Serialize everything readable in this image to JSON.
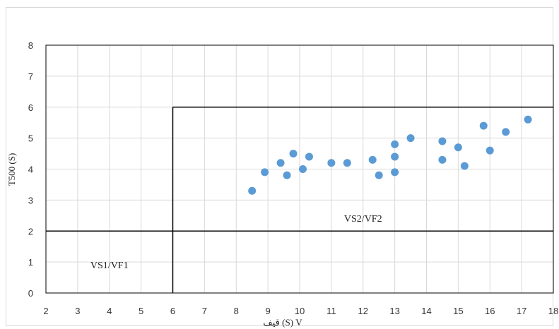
{
  "chart_data": {
    "type": "scatter",
    "xlabel": "قيف (S) V",
    "ylabel": "T500 (S)",
    "xlim": [
      2,
      18
    ],
    "ylim": [
      0,
      8
    ],
    "x_ticks": [
      2,
      3,
      4,
      5,
      6,
      7,
      8,
      9,
      10,
      11,
      12,
      13,
      14,
      15,
      16,
      17,
      18
    ],
    "y_ticks": [
      0,
      1,
      2,
      3,
      4,
      5,
      6,
      7,
      8
    ],
    "grid": true,
    "marker_color": "#5b9bd5",
    "points": [
      {
        "x": 8.5,
        "y": 3.3
      },
      {
        "x": 8.9,
        "y": 3.9
      },
      {
        "x": 9.4,
        "y": 4.2
      },
      {
        "x": 9.6,
        "y": 3.8
      },
      {
        "x": 9.8,
        "y": 4.5
      },
      {
        "x": 10.1,
        "y": 4.0
      },
      {
        "x": 10.3,
        "y": 4.4
      },
      {
        "x": 11.0,
        "y": 4.2
      },
      {
        "x": 11.5,
        "y": 4.2
      },
      {
        "x": 12.3,
        "y": 4.3
      },
      {
        "x": 12.5,
        "y": 3.8
      },
      {
        "x": 13.0,
        "y": 4.8
      },
      {
        "x": 13.0,
        "y": 4.4
      },
      {
        "x": 13.0,
        "y": 3.9
      },
      {
        "x": 13.5,
        "y": 5.0
      },
      {
        "x": 14.5,
        "y": 4.9
      },
      {
        "x": 14.5,
        "y": 4.3
      },
      {
        "x": 15.0,
        "y": 4.7
      },
      {
        "x": 15.2,
        "y": 4.1
      },
      {
        "x": 15.8,
        "y": 5.4
      },
      {
        "x": 16.0,
        "y": 4.6
      },
      {
        "x": 16.5,
        "y": 5.2
      },
      {
        "x": 17.2,
        "y": 5.6
      }
    ],
    "region_lines": [
      {
        "x1": 2,
        "y1": 2,
        "x2": 18,
        "y2": 2
      },
      {
        "x1": 6,
        "y1": 0,
        "x2": 6,
        "y2": 6
      },
      {
        "x1": 6,
        "y1": 6,
        "x2": 18,
        "y2": 6
      }
    ],
    "region_labels": [
      {
        "text": "VS1/VF1",
        "x": 4.0,
        "y": 0.8
      },
      {
        "text": "VS2/VF2",
        "x": 12.0,
        "y": 2.3
      }
    ]
  }
}
